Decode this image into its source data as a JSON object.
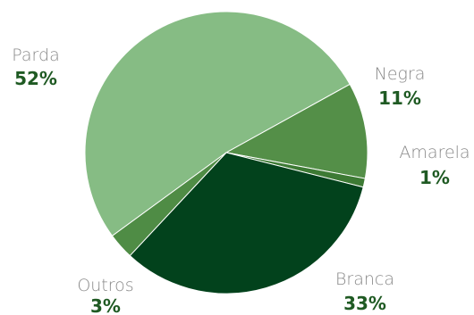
{
  "chart_data": {
    "type": "pie",
    "slices": [
      {
        "label": "Parda",
        "value": 52,
        "display": "52%",
        "color": "#86bc84"
      },
      {
        "label": "Negra",
        "value": 11,
        "display": "11%",
        "color": "#548f48"
      },
      {
        "label": "Amarela",
        "value": 1,
        "display": "1%",
        "color": "#3d7a34"
      },
      {
        "label": "Branca",
        "value": 33,
        "display": "33%",
        "color": "#02421c"
      },
      {
        "label": "Outros",
        "value": 3,
        "display": "3%",
        "color": "#4f8c45"
      }
    ],
    "label_color": "#8a8a8a",
    "value_color": "#1f5a23"
  }
}
